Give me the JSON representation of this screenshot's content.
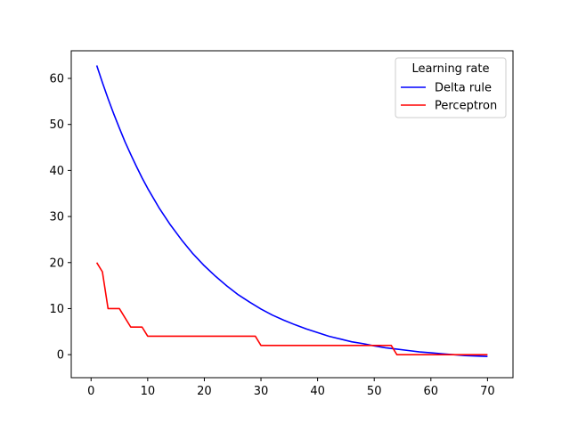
{
  "chart_data": {
    "type": "line",
    "title": "",
    "xlabel": "",
    "ylabel": "",
    "xlim": [
      -3.5,
      74.5
    ],
    "ylim": [
      -5,
      66
    ],
    "xticks": [
      0,
      10,
      20,
      30,
      40,
      50,
      60,
      70
    ],
    "yticks": [
      0,
      10,
      20,
      30,
      40,
      50,
      60
    ],
    "grid": false,
    "legend": {
      "title": "Learning rate",
      "placement": "top-right",
      "entries": [
        "Delta rule",
        "Perceptron"
      ]
    },
    "series": [
      {
        "name": "Delta rule",
        "color": "#0000ff",
        "x": [
          1,
          2,
          3,
          4,
          5,
          6,
          7,
          8,
          9,
          10,
          12,
          14,
          16,
          18,
          20,
          22,
          24,
          26,
          28,
          30,
          32,
          34,
          36,
          38,
          40,
          42,
          44,
          46,
          48,
          50,
          52,
          54,
          56,
          58,
          60,
          62,
          64,
          66,
          68,
          70
        ],
        "y": [
          62.8,
          59.1,
          55.6,
          52.3,
          49.2,
          46.2,
          43.5,
          40.9,
          38.4,
          36.1,
          31.9,
          28.2,
          24.9,
          21.9,
          19.3,
          17.0,
          14.9,
          13.0,
          11.4,
          9.9,
          8.6,
          7.5,
          6.5,
          5.6,
          4.8,
          4.0,
          3.4,
          2.8,
          2.4,
          1.9,
          1.5,
          1.2,
          0.9,
          0.6,
          0.4,
          0.2,
          0.0,
          -0.2,
          -0.3,
          -0.4
        ]
      },
      {
        "name": "Perceptron",
        "color": "#ff0000",
        "x": [
          1,
          2,
          3,
          4,
          5,
          6,
          7,
          8,
          9,
          10,
          28,
          29,
          30,
          52,
          53,
          54,
          70
        ],
        "y": [
          20,
          18,
          10,
          10,
          10,
          8,
          6,
          6,
          6,
          4,
          4,
          4,
          2,
          2,
          2,
          0,
          0
        ]
      }
    ]
  }
}
